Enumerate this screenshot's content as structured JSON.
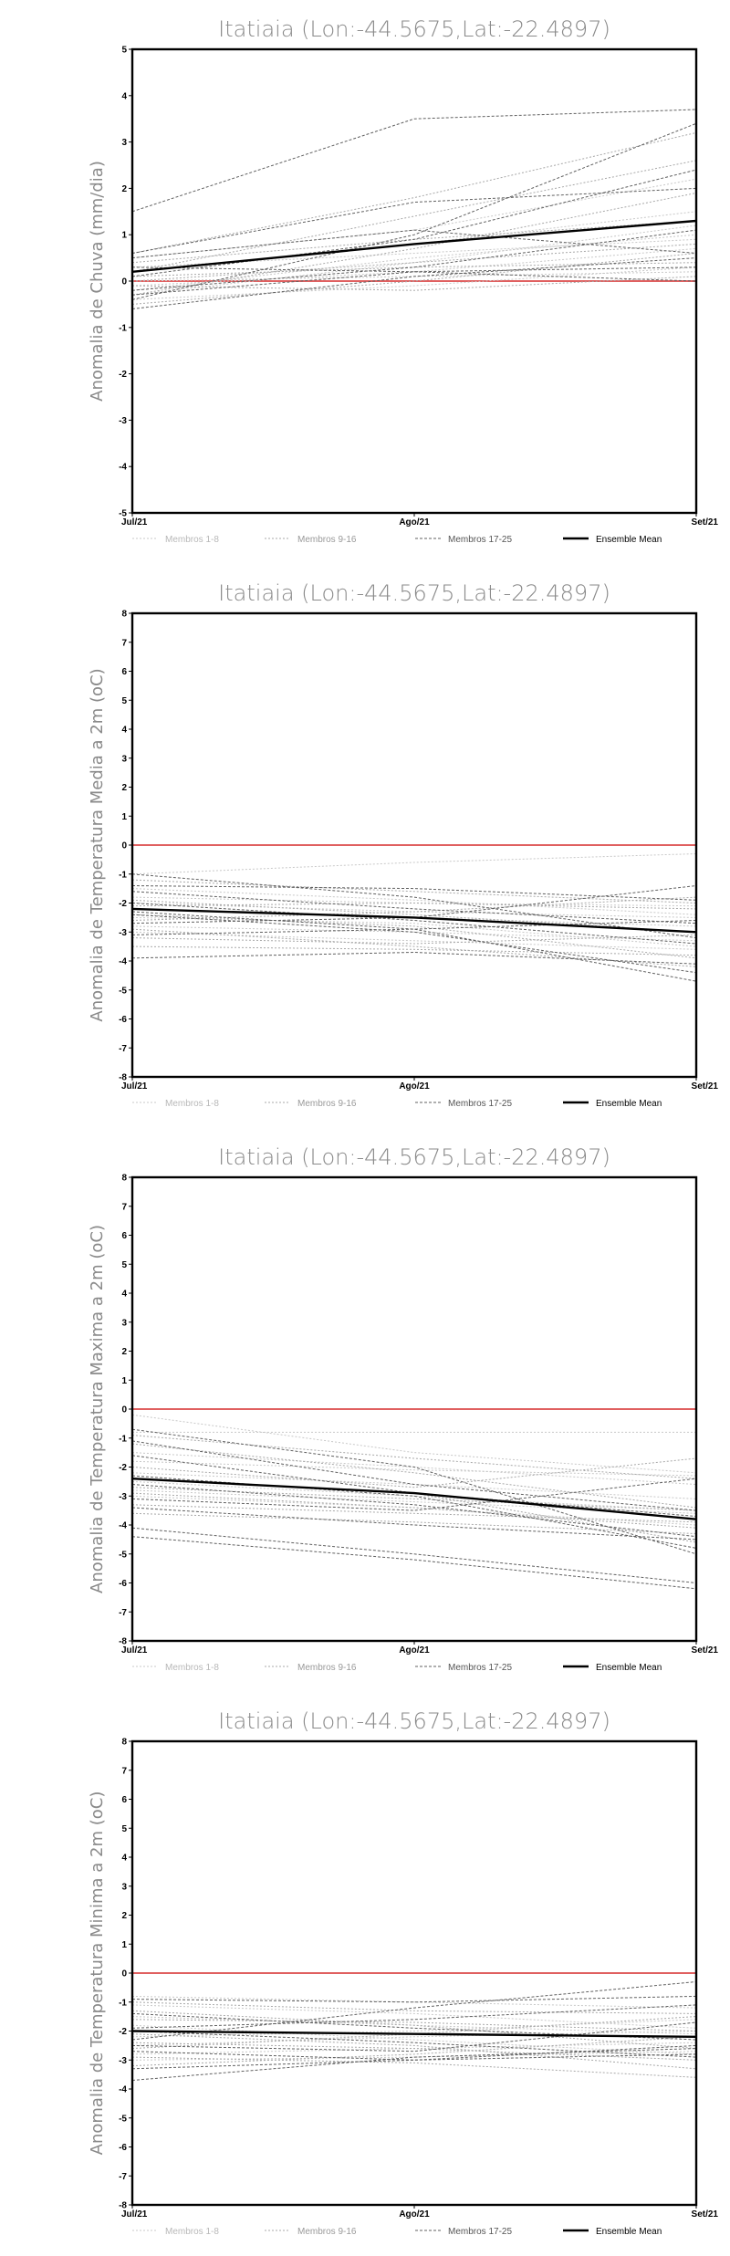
{
  "chart_data": [
    {
      "type": "line",
      "title": "Itatiaia (Lon:-44.5675,Lat:-22.4897)",
      "ylabel": "Anomalia de Chuva (mm/dia)",
      "xlabel": "",
      "categories": [
        "Jul/21",
        "Ago/21",
        "Set/21"
      ],
      "ylim": [
        -5,
        5
      ],
      "yticks": [
        -5,
        -4,
        -3,
        -2,
        -1,
        0,
        1,
        2,
        3,
        4,
        5
      ],
      "grid": false,
      "legend_position": "bottom",
      "legend": [
        "Membros 1-8",
        "Membros 9-16",
        "Membros 17-25",
        "Ensemble Mean"
      ],
      "zero_line_color": "#e06060",
      "series": [
        {
          "group": 0,
          "values": [
            -0.3,
            0.4,
            1.2
          ]
        },
        {
          "group": 0,
          "values": [
            -0.1,
            0.2,
            0.7
          ]
        },
        {
          "group": 0,
          "values": [
            0.2,
            0.8,
            1.5
          ]
        },
        {
          "group": 0,
          "values": [
            -0.4,
            -0.1,
            0.3
          ]
        },
        {
          "group": 0,
          "values": [
            0.5,
            1.1,
            2.2
          ]
        },
        {
          "group": 0,
          "values": [
            0.0,
            0.1,
            0.2
          ]
        },
        {
          "group": 0,
          "values": [
            -0.2,
            0.5,
            1.0
          ]
        },
        {
          "group": 0,
          "values": [
            0.3,
            0.6,
            0.9
          ]
        },
        {
          "group": 1,
          "values": [
            0.6,
            1.8,
            3.2
          ]
        },
        {
          "group": 1,
          "values": [
            -0.5,
            0.0,
            0.6
          ]
        },
        {
          "group": 1,
          "values": [
            0.1,
            0.3,
            0.4
          ]
        },
        {
          "group": 1,
          "values": [
            -0.3,
            0.7,
            1.9
          ]
        },
        {
          "group": 1,
          "values": [
            0.4,
            0.9,
            1.3
          ]
        },
        {
          "group": 1,
          "values": [
            -0.1,
            -0.2,
            0.1
          ]
        },
        {
          "group": 1,
          "values": [
            0.2,
            1.4,
            2.6
          ]
        },
        {
          "group": 1,
          "values": [
            0.0,
            0.4,
            0.8
          ]
        },
        {
          "group": 2,
          "values": [
            1.5,
            3.5,
            3.7
          ]
        },
        {
          "group": 2,
          "values": [
            -0.4,
            1.0,
            3.4
          ]
        },
        {
          "group": 2,
          "values": [
            0.6,
            1.7,
            2.0
          ]
        },
        {
          "group": 2,
          "values": [
            -0.2,
            0.3,
            1.1
          ]
        },
        {
          "group": 2,
          "values": [
            0.3,
            0.2,
            0.3
          ]
        },
        {
          "group": 2,
          "values": [
            -0.6,
            0.1,
            0.5
          ]
        },
        {
          "group": 2,
          "values": [
            0.1,
            0.9,
            2.4
          ]
        },
        {
          "group": 2,
          "values": [
            0.5,
            1.1,
            0.6
          ]
        },
        {
          "group": 2,
          "values": [
            -0.3,
            0.2,
            0.0
          ]
        },
        {
          "group": 3,
          "values": [
            0.2,
            0.8,
            1.3
          ]
        }
      ]
    },
    {
      "type": "line",
      "title": "Itatiaia (Lon:-44.5675,Lat:-22.4897)",
      "ylabel": "Anomalia de Temperatura Media a 2m (oC)",
      "xlabel": "",
      "categories": [
        "Jul/21",
        "Ago/21",
        "Set/21"
      ],
      "ylim": [
        -8,
        8
      ],
      "yticks": [
        -8,
        -7,
        -6,
        -5,
        -4,
        -3,
        -2,
        -1,
        0,
        1,
        2,
        3,
        4,
        5,
        6,
        7,
        8
      ],
      "grid": false,
      "legend_position": "bottom",
      "legend": [
        "Membros 1-8",
        "Membros 9-16",
        "Membros 17-25",
        "Ensemble Mean"
      ],
      "zero_line_color": "#e06060",
      "series": [
        {
          "group": 0,
          "values": [
            -1.0,
            -0.6,
            -0.3
          ]
        },
        {
          "group": 0,
          "values": [
            -2.2,
            -2.5,
            -2.8
          ]
        },
        {
          "group": 0,
          "values": [
            -1.5,
            -1.9,
            -2.4
          ]
        },
        {
          "group": 0,
          "values": [
            -2.8,
            -3.0,
            -3.3
          ]
        },
        {
          "group": 0,
          "values": [
            -1.8,
            -2.0,
            -2.1
          ]
        },
        {
          "group": 0,
          "values": [
            -2.5,
            -2.7,
            -3.5
          ]
        },
        {
          "group": 0,
          "values": [
            -3.0,
            -3.3,
            -3.6
          ]
        },
        {
          "group": 0,
          "values": [
            -2.0,
            -2.3,
            -2.5
          ]
        },
        {
          "group": 1,
          "values": [
            -1.2,
            -1.6,
            -2.0
          ]
        },
        {
          "group": 1,
          "values": [
            -2.4,
            -2.8,
            -3.9
          ]
        },
        {
          "group": 1,
          "values": [
            -3.2,
            -3.4,
            -3.1
          ]
        },
        {
          "group": 1,
          "values": [
            -2.6,
            -2.3,
            -1.8
          ]
        },
        {
          "group": 1,
          "values": [
            -1.9,
            -2.4,
            -3.0
          ]
        },
        {
          "group": 1,
          "values": [
            -2.9,
            -3.5,
            -4.2
          ]
        },
        {
          "group": 1,
          "values": [
            -2.1,
            -2.0,
            -2.2
          ]
        },
        {
          "group": 1,
          "values": [
            -3.5,
            -3.6,
            -3.8
          ]
        },
        {
          "group": 2,
          "values": [
            -3.9,
            -3.7,
            -4.1
          ]
        },
        {
          "group": 2,
          "values": [
            -1.0,
            -1.8,
            -3.2
          ]
        },
        {
          "group": 2,
          "values": [
            -2.3,
            -2.9,
            -4.7
          ]
        },
        {
          "group": 2,
          "values": [
            -2.7,
            -2.5,
            -1.4
          ]
        },
        {
          "group": 2,
          "values": [
            -1.6,
            -2.2,
            -2.7
          ]
        },
        {
          "group": 2,
          "values": [
            -3.1,
            -2.9,
            -2.6
          ]
        },
        {
          "group": 2,
          "values": [
            -2.0,
            -2.6,
            -3.4
          ]
        },
        {
          "group": 2,
          "values": [
            -2.4,
            -3.0,
            -4.4
          ]
        },
        {
          "group": 2,
          "values": [
            -1.4,
            -1.5,
            -1.9
          ]
        },
        {
          "group": 3,
          "values": [
            -2.2,
            -2.5,
            -3.0
          ]
        }
      ]
    },
    {
      "type": "line",
      "title": "Itatiaia (Lon:-44.5675,Lat:-22.4897)",
      "ylabel": "Anomalia de Temperatura Maxima a 2m (oC)",
      "xlabel": "",
      "categories": [
        "Jul/21",
        "Ago/21",
        "Set/21"
      ],
      "ylim": [
        -8,
        8
      ],
      "yticks": [
        -8,
        -7,
        -6,
        -5,
        -4,
        -3,
        -2,
        -1,
        0,
        1,
        2,
        3,
        4,
        5,
        6,
        7,
        8
      ],
      "grid": false,
      "legend_position": "bottom",
      "legend": [
        "Membros 1-8",
        "Membros 9-16",
        "Membros 17-25",
        "Ensemble Mean"
      ],
      "zero_line_color": "#e06060",
      "series": [
        {
          "group": 0,
          "values": [
            -0.8,
            -0.8,
            -0.8
          ]
        },
        {
          "group": 0,
          "values": [
            -0.2,
            -1.5,
            -2.2
          ]
        },
        {
          "group": 0,
          "values": [
            -2.5,
            -3.0,
            -3.5
          ]
        },
        {
          "group": 0,
          "values": [
            -1.8,
            -2.1,
            -2.3
          ]
        },
        {
          "group": 0,
          "values": [
            -3.0,
            -3.4,
            -4.0
          ]
        },
        {
          "group": 0,
          "values": [
            -2.2,
            -2.6,
            -3.1
          ]
        },
        {
          "group": 0,
          "values": [
            -1.5,
            -2.0,
            -2.6
          ]
        },
        {
          "group": 0,
          "values": [
            -2.8,
            -3.2,
            -3.6
          ]
        },
        {
          "group": 1,
          "values": [
            -0.9,
            -1.7,
            -2.4
          ]
        },
        {
          "group": 1,
          "values": [
            -2.4,
            -2.9,
            -4.6
          ]
        },
        {
          "group": 1,
          "values": [
            -3.3,
            -3.6,
            -3.9
          ]
        },
        {
          "group": 1,
          "values": [
            -2.0,
            -2.7,
            -1.7
          ]
        },
        {
          "group": 1,
          "values": [
            -3.6,
            -3.9,
            -4.3
          ]
        },
        {
          "group": 1,
          "values": [
            -1.2,
            -2.2,
            -3.4
          ]
        },
        {
          "group": 1,
          "values": [
            -2.7,
            -3.1,
            -3.5
          ]
        },
        {
          "group": 1,
          "values": [
            -2.9,
            -3.4,
            -4.1
          ]
        },
        {
          "group": 2,
          "values": [
            -4.1,
            -5.0,
            -6.0
          ]
        },
        {
          "group": 2,
          "values": [
            -4.4,
            -5.2,
            -6.2
          ]
        },
        {
          "group": 2,
          "values": [
            -0.7,
            -2.0,
            -5.0
          ]
        },
        {
          "group": 2,
          "values": [
            -2.3,
            -3.0,
            -4.8
          ]
        },
        {
          "group": 2,
          "values": [
            -1.1,
            -2.6,
            -3.5
          ]
        },
        {
          "group": 2,
          "values": [
            -3.1,
            -3.5,
            -2.4
          ]
        },
        {
          "group": 2,
          "values": [
            -2.6,
            -3.3,
            -4.4
          ]
        },
        {
          "group": 2,
          "values": [
            -1.6,
            -2.9,
            -3.7
          ]
        },
        {
          "group": 2,
          "values": [
            -3.4,
            -4.0,
            -4.5
          ]
        },
        {
          "group": 3,
          "values": [
            -2.4,
            -2.9,
            -3.8
          ]
        }
      ]
    },
    {
      "type": "line",
      "title": "Itatiaia (Lon:-44.5675,Lat:-22.4897)",
      "ylabel": "Anomalia de Temperatura Minima a 2m (oC)",
      "xlabel": "",
      "categories": [
        "Jul/21",
        "Ago/21",
        "Set/21"
      ],
      "ylim": [
        -8,
        8
      ],
      "yticks": [
        -8,
        -7,
        -6,
        -5,
        -4,
        -3,
        -2,
        -1,
        0,
        1,
        2,
        3,
        4,
        5,
        6,
        7,
        8
      ],
      "grid": false,
      "legend_position": "bottom",
      "legend": [
        "Membros 1-8",
        "Membros 9-16",
        "Membros 17-25",
        "Ensemble Mean"
      ],
      "zero_line_color": "#e06060",
      "series": [
        {
          "group": 0,
          "values": [
            -0.8,
            -1.0,
            -1.2
          ]
        },
        {
          "group": 0,
          "values": [
            -1.5,
            -1.8,
            -2.1
          ]
        },
        {
          "group": 0,
          "values": [
            -2.8,
            -2.6,
            -2.4
          ]
        },
        {
          "group": 0,
          "values": [
            -2.2,
            -2.0,
            -1.6
          ]
        },
        {
          "group": 0,
          "values": [
            -1.1,
            -1.4,
            -1.9
          ]
        },
        {
          "group": 0,
          "values": [
            -3.0,
            -2.9,
            -2.7
          ]
        },
        {
          "group": 0,
          "values": [
            -2.5,
            -2.2,
            -2.0
          ]
        },
        {
          "group": 0,
          "values": [
            -1.8,
            -2.3,
            -2.8
          ]
        },
        {
          "group": 1,
          "values": [
            -1.0,
            -1.3,
            -1.4
          ]
        },
        {
          "group": 1,
          "values": [
            -2.1,
            -2.5,
            -3.3
          ]
        },
        {
          "group": 1,
          "values": [
            -2.6,
            -2.1,
            -1.5
          ]
        },
        {
          "group": 1,
          "values": [
            -1.3,
            -1.8,
            -2.6
          ]
        },
        {
          "group": 1,
          "values": [
            -3.2,
            -2.8,
            -2.2
          ]
        },
        {
          "group": 1,
          "values": [
            -2.4,
            -2.6,
            -3.0
          ]
        },
        {
          "group": 1,
          "values": [
            -1.6,
            -1.7,
            -2.0
          ]
        },
        {
          "group": 1,
          "values": [
            -2.9,
            -3.1,
            -3.6
          ]
        },
        {
          "group": 2,
          "values": [
            -3.7,
            -2.9,
            -2.6
          ]
        },
        {
          "group": 2,
          "values": [
            -2.3,
            -1.2,
            -0.3
          ]
        },
        {
          "group": 2,
          "values": [
            -0.9,
            -1.0,
            -0.8
          ]
        },
        {
          "group": 2,
          "values": [
            -2.7,
            -3.0,
            -2.8
          ]
        },
        {
          "group": 2,
          "values": [
            -1.9,
            -1.6,
            -1.1
          ]
        },
        {
          "group": 2,
          "values": [
            -3.3,
            -3.0,
            -2.5
          ]
        },
        {
          "group": 2,
          "values": [
            -2.0,
            -2.4,
            -2.9
          ]
        },
        {
          "group": 2,
          "values": [
            -1.4,
            -1.9,
            -2.3
          ]
        },
        {
          "group": 2,
          "values": [
            -2.5,
            -2.7,
            -1.7
          ]
        },
        {
          "group": 3,
          "values": [
            -2.0,
            -2.1,
            -2.2
          ]
        }
      ]
    }
  ]
}
